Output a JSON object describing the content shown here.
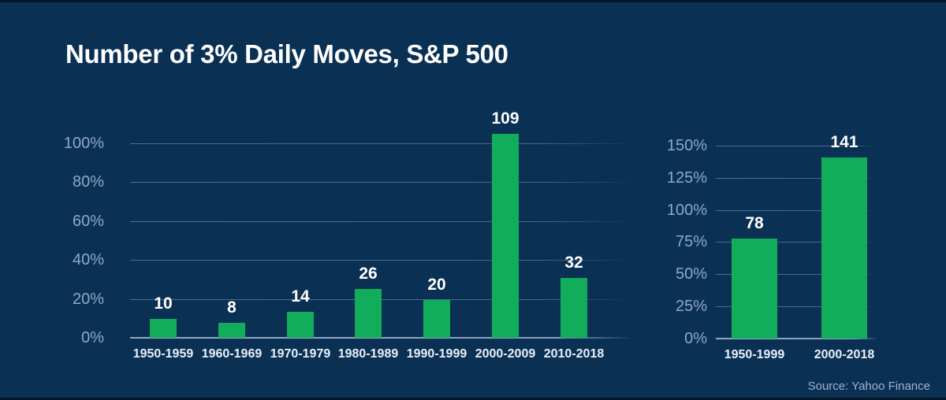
{
  "title": "Number of 3% Daily Moves, S&P 500",
  "source": "Source: Yahoo Finance",
  "colors": {
    "background": "#0a3054",
    "bar_green": "#12ad5a",
    "gridline": "#8fa9cb",
    "baseline": "#a9bed8",
    "y_tick_label": "#8ea8c8",
    "category_label": "#e9f0f8",
    "value_label": "#ffffff",
    "title": "#ffffff",
    "source": "#9fb4cc"
  },
  "chart_data": [
    {
      "type": "bar",
      "name": "daily-moves-by-decade",
      "categories": [
        "1950-1959",
        "1960-1969",
        "1970-1979",
        "1980-1989",
        "1990-1999",
        "2000-2009",
        "2010-2018"
      ],
      "values": [
        10,
        8,
        14,
        26,
        20,
        109,
        32
      ],
      "yticks": [
        {
          "value": 0,
          "label": "0%"
        },
        {
          "value": 20,
          "label": "20%"
        },
        {
          "value": 40,
          "label": "40%"
        },
        {
          "value": 60,
          "label": "60%"
        },
        {
          "value": 80,
          "label": "80%"
        },
        {
          "value": 100,
          "label": "100%"
        }
      ],
      "ylim": [
        0,
        110
      ],
      "grid": true,
      "legend": false,
      "bar_color": "#12ad5a"
    },
    {
      "type": "bar",
      "name": "daily-moves-by-period",
      "categories": [
        "1950-1999",
        "2000-2018"
      ],
      "values": [
        78,
        141
      ],
      "yticks": [
        {
          "value": 0,
          "label": "0%"
        },
        {
          "value": 25,
          "label": "25%"
        },
        {
          "value": 50,
          "label": "50%"
        },
        {
          "value": 75,
          "label": "75%"
        },
        {
          "value": 100,
          "label": "100%"
        },
        {
          "value": 125,
          "label": "125%"
        },
        {
          "value": 150,
          "label": "150%"
        }
      ],
      "ylim": [
        0,
        155
      ],
      "grid": true,
      "legend": false,
      "bar_color": "#12ad5a"
    }
  ]
}
